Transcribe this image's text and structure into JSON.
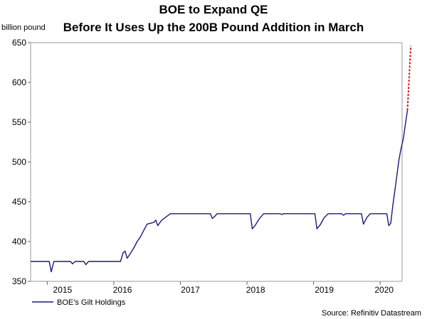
{
  "chart_data": {
    "type": "line",
    "title": "BOE to Expand QE",
    "subtitle": "Before It Uses Up the 200B Pound Addition in March",
    "ylabel": "billion pound",
    "ylim": [
      350,
      650
    ],
    "yticks": [
      350,
      400,
      450,
      500,
      550,
      600,
      650
    ],
    "xlim": [
      2014.75,
      2020.33
    ],
    "x_tick_labels": [
      "2015",
      "2016",
      "2017",
      "2018",
      "2019",
      "2020"
    ],
    "x_tick_positions": [
      2015.23,
      2016.13,
      2017.15,
      2018.13,
      2019.16,
      2020.06
    ],
    "x_year_boundaries": [
      2015,
      2016,
      2017,
      2018,
      2019,
      2020
    ],
    "grid": "horizontal-top-only",
    "legend_position": "bottom-left",
    "source": "Source: Refinitiv Datastream",
    "series": [
      {
        "name": "BOE's Gilt Holdings",
        "color": "#1a1a7e",
        "points": [
          [
            2014.75,
            375
          ],
          [
            2015.0,
            375
          ],
          [
            2015.03,
            375
          ],
          [
            2015.06,
            362
          ],
          [
            2015.1,
            375
          ],
          [
            2015.15,
            375
          ],
          [
            2015.2,
            375
          ],
          [
            2015.35,
            375
          ],
          [
            2015.38,
            372
          ],
          [
            2015.42,
            375
          ],
          [
            2015.55,
            375
          ],
          [
            2015.58,
            371
          ],
          [
            2015.62,
            375
          ],
          [
            2016.0,
            375
          ],
          [
            2016.05,
            375
          ],
          [
            2016.1,
            375
          ],
          [
            2016.14,
            386
          ],
          [
            2016.17,
            388
          ],
          [
            2016.2,
            379
          ],
          [
            2016.25,
            385
          ],
          [
            2016.3,
            392
          ],
          [
            2016.35,
            400
          ],
          [
            2016.4,
            406
          ],
          [
            2016.45,
            414
          ],
          [
            2016.5,
            422
          ],
          [
            2016.55,
            423
          ],
          [
            2016.6,
            424
          ],
          [
            2016.63,
            427
          ],
          [
            2016.66,
            420
          ],
          [
            2016.72,
            427
          ],
          [
            2016.8,
            432
          ],
          [
            2016.85,
            435
          ],
          [
            2017.2,
            435
          ],
          [
            2017.4,
            435
          ],
          [
            2017.45,
            435
          ],
          [
            2017.48,
            429
          ],
          [
            2017.52,
            432
          ],
          [
            2017.55,
            435
          ],
          [
            2017.95,
            435
          ],
          [
            2018.0,
            435
          ],
          [
            2018.05,
            435
          ],
          [
            2018.08,
            416
          ],
          [
            2018.12,
            420
          ],
          [
            2018.18,
            428
          ],
          [
            2018.25,
            435
          ],
          [
            2018.5,
            435
          ],
          [
            2018.52,
            434
          ],
          [
            2018.55,
            435
          ],
          [
            2018.95,
            435
          ],
          [
            2019.0,
            435
          ],
          [
            2019.02,
            435
          ],
          [
            2019.05,
            416
          ],
          [
            2019.1,
            421
          ],
          [
            2019.16,
            430
          ],
          [
            2019.22,
            435
          ],
          [
            2019.42,
            435
          ],
          [
            2019.45,
            433
          ],
          [
            2019.48,
            435
          ],
          [
            2019.68,
            435
          ],
          [
            2019.72,
            435
          ],
          [
            2019.75,
            422
          ],
          [
            2019.8,
            430
          ],
          [
            2019.85,
            435
          ],
          [
            2019.95,
            435
          ],
          [
            2020.0,
            435
          ],
          [
            2020.06,
            435
          ],
          [
            2020.1,
            435
          ],
          [
            2020.13,
            420
          ],
          [
            2020.16,
            423
          ],
          [
            2020.19,
            445
          ],
          [
            2020.22,
            463
          ],
          [
            2020.25,
            482
          ],
          [
            2020.28,
            501
          ],
          [
            2020.31,
            515
          ],
          [
            2020.35,
            530
          ],
          [
            2020.38,
            548
          ],
          [
            2020.41,
            565
          ]
        ]
      },
      {
        "name": "",
        "color": "#e01818",
        "style": "dashed",
        "points": [
          [
            2020.41,
            565
          ],
          [
            2020.46,
            646
          ]
        ]
      }
    ]
  }
}
